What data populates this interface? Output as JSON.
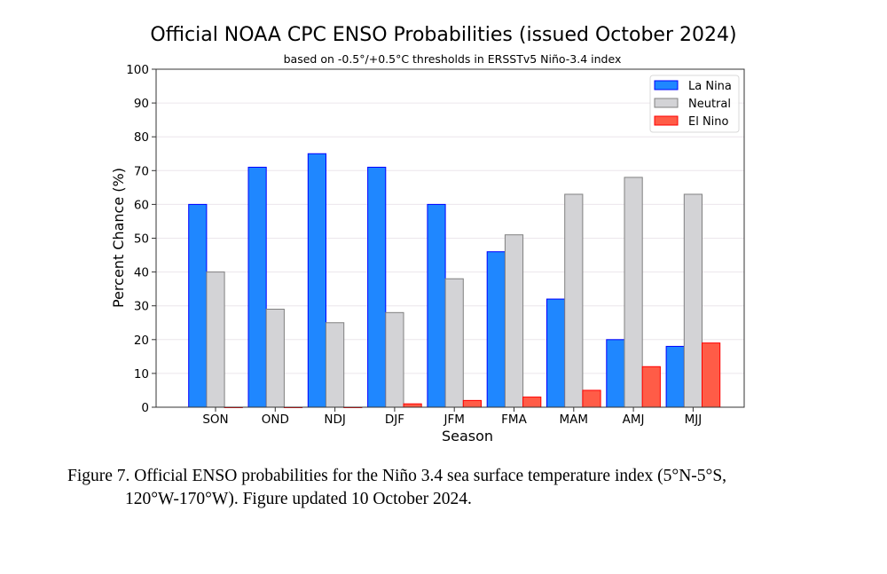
{
  "chart_data": {
    "type": "bar",
    "title": "Official NOAA CPC ENSO Probabilities (issued October 2024)",
    "subtitle": "based on -0.5°/+0.5°C thresholds in ERSSTv5 Niño-3.4 index",
    "xlabel": "Season",
    "ylabel": "Percent Chance (%)",
    "ylim": [
      0,
      100
    ],
    "yticks": [
      0,
      10,
      20,
      30,
      40,
      50,
      60,
      70,
      80,
      90,
      100
    ],
    "grid": true,
    "legend_position": "top-right",
    "categories": [
      "SON",
      "OND",
      "NDJ",
      "DJF",
      "JFM",
      "FMA",
      "MAM",
      "AMJ",
      "MJJ"
    ],
    "series": [
      {
        "name": "La Nina",
        "color": "#1f87ff",
        "edge": "#0000ff",
        "values": [
          60,
          71,
          75,
          71,
          60,
          46,
          32,
          20,
          18
        ]
      },
      {
        "name": "Neutral",
        "color": "#d3d3d6",
        "edge": "#808080",
        "values": [
          40,
          29,
          25,
          28,
          38,
          51,
          63,
          68,
          63
        ]
      },
      {
        "name": "El Nino",
        "color": "#ff5c47",
        "edge": "#ff0000",
        "values": [
          0,
          0,
          0,
          1,
          2,
          3,
          5,
          12,
          19
        ]
      }
    ]
  },
  "caption": {
    "line1": "Figure 7. Official ENSO probabilities for the Niño 3.4 sea surface temperature index (5°N-5°S,",
    "line2": "120°W-170°W). Figure updated 10 October 2024."
  }
}
